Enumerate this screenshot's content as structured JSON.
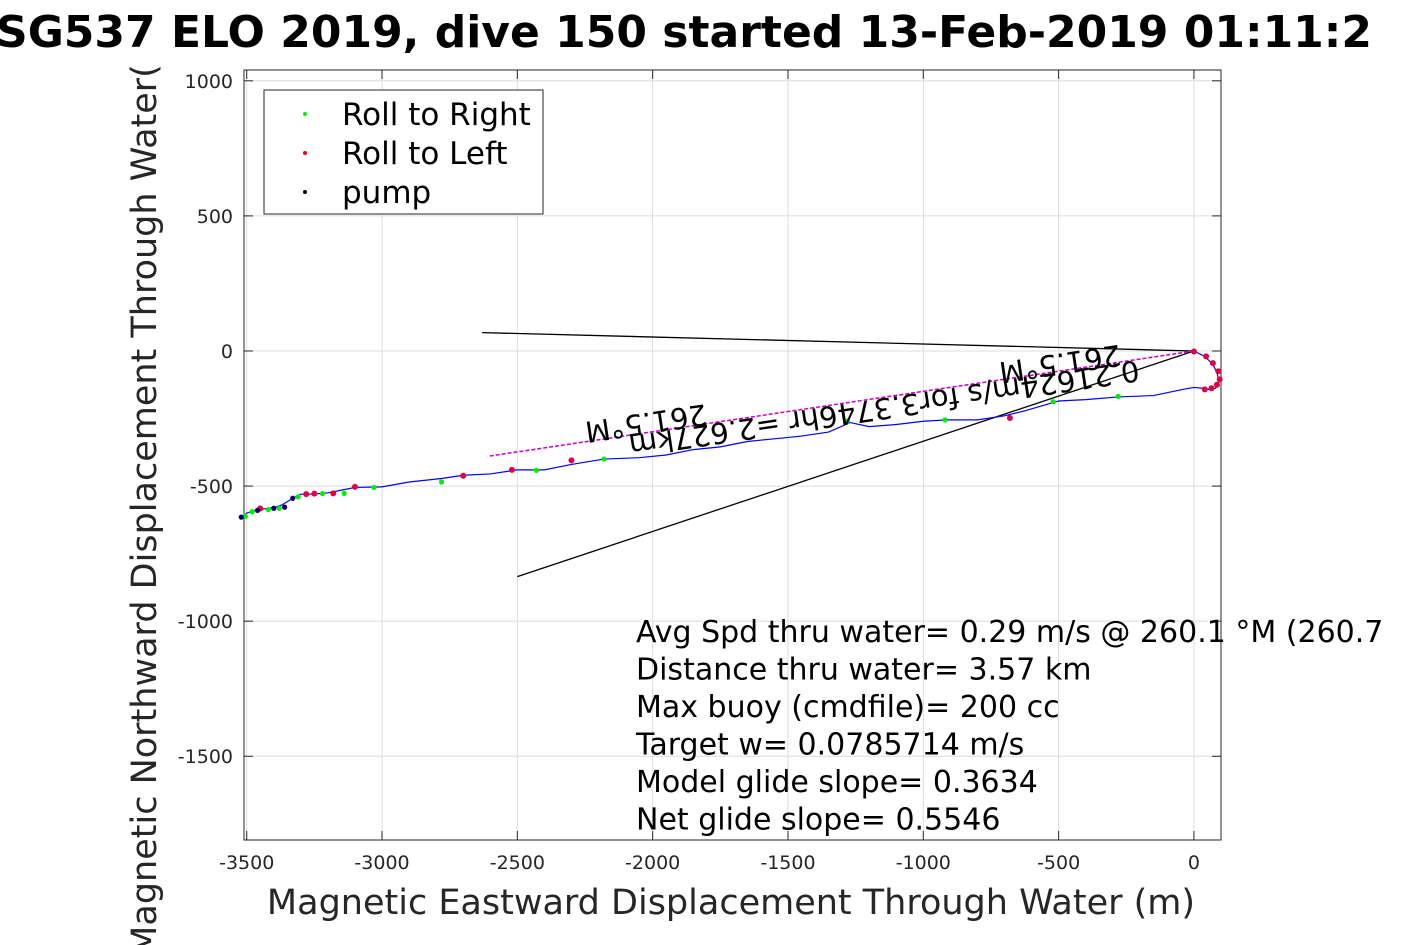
{
  "chart_data": {
    "type": "line",
    "title": "SG537 ELO 2019, dive 150 started 13-Feb-2019 01:11:2",
    "xlabel": "Magnetic Eastward Displacement Through Water (m)",
    "ylabel": "Magnetic Northward Displacement Through Water(",
    "xlim": [
      -3510,
      100
    ],
    "ylim": [
      -1810,
      1040
    ],
    "xticks": [
      -3500,
      -3000,
      -2500,
      -2000,
      -1500,
      -1000,
      -500,
      0
    ],
    "yticks": [
      1000,
      500,
      0,
      -500,
      -1000,
      -1500
    ],
    "grid": true,
    "legend_position": "top-left",
    "legend": [
      {
        "label": "Roll to Right",
        "color": "#00ee00"
      },
      {
        "label": "Roll to Left",
        "color": "#ee0000"
      },
      {
        "label": "pump",
        "color": "#000000"
      }
    ],
    "track": {
      "name": "track",
      "color": "#0000ff",
      "x": [
        0,
        40,
        70,
        85,
        92,
        90,
        75,
        55,
        30,
        0,
        -30,
        -150,
        -280,
        -400,
        -500,
        -620,
        -700,
        -800,
        -910,
        -1000,
        -1100,
        -1200,
        -1270,
        -1350,
        -1450,
        -1550,
        -1650,
        -1750,
        -1850,
        -1950,
        -2050,
        -2180,
        -2300,
        -2400,
        -2500,
        -2600,
        -2700,
        -2780,
        -2900,
        -3000,
        -3100,
        -3150,
        -3200,
        -3260,
        -3300,
        -3330,
        -3370,
        -3400,
        -3440,
        -3470,
        -3500,
        -3510
      ],
      "y": [
        0,
        -20,
        -50,
        -80,
        -110,
        -130,
        -140,
        -142,
        -138,
        -135,
        -140,
        -165,
        -170,
        -180,
        -185,
        -220,
        -240,
        -255,
        -255,
        -260,
        -272,
        -280,
        -265,
        -300,
        -315,
        -325,
        -335,
        -355,
        -365,
        -385,
        -395,
        -400,
        -420,
        -440,
        -440,
        -455,
        -460,
        -472,
        -485,
        -503,
        -505,
        -515,
        -525,
        -530,
        -530,
        -545,
        -570,
        -580,
        -585,
        -590,
        -600,
        -615
      ]
    },
    "markers": {
      "roll_right": {
        "x": [
          -3505,
          -3480,
          -3420,
          -3380,
          -3310,
          -3220,
          -3140,
          -3030,
          -2780,
          -2430,
          -2180,
          -1280,
          -920,
          -520,
          -280
        ],
        "y": [
          -612,
          -595,
          -587,
          -582,
          -540,
          -528,
          -527,
          -505,
          -485,
          -442,
          -400,
          -260,
          -255,
          -188,
          -168
        ]
      },
      "roll_left": {
        "x": [
          -3450,
          -3280,
          -3250,
          -3180,
          -3100,
          -2700,
          -2520,
          -2300,
          -680,
          0,
          45,
          70,
          90,
          95,
          85,
          65,
          40
        ],
        "y": [
          -583,
          -530,
          -528,
          -527,
          -503,
          -462,
          -440,
          -405,
          -248,
          -2,
          -20,
          -45,
          -75,
          -105,
          -125,
          -138,
          -142
        ]
      },
      "pump": {
        "x": [
          -3520,
          -3460,
          -3400,
          -3360,
          -3330
        ],
        "y": [
          -615,
          -590,
          -582,
          -578,
          -545
        ]
      }
    },
    "lines": [
      {
        "name": "heading-line",
        "color": "#000000",
        "x": [
          0,
          -2630
        ],
        "y": [
          0,
          68
        ]
      },
      {
        "name": "wedge-line",
        "color": "#000000",
        "x": [
          0,
          -2500
        ],
        "y": [
          0,
          -835
        ]
      },
      {
        "name": "average-vector",
        "color": "#cc00cc",
        "x": [
          0,
          -2610
        ],
        "y": [
          0,
          -390
        ]
      }
    ],
    "rotated_labels": [
      {
        "name": "vector-speed-label",
        "text": "0.21624m/s for3.3746hr =2.627km",
        "x": -1150,
        "y": -175,
        "angle": 171.5
      },
      {
        "name": "heading-label-right",
        "text": "261.5°M",
        "x": -500,
        "y": -10,
        "angle": 171.5
      },
      {
        "name": "heading-label-left",
        "text": "261.5°M",
        "x": -2030,
        "y": -230,
        "angle": 171.5
      }
    ],
    "annotations": [
      "Avg Spd thru water=  0.29 m/s @ 260.1 °M (260.7",
      "Distance thru water=  3.57 km",
      "Max buoy (cmdfile)= 200 cc",
      "Target w= 0.0785714 m/s",
      "Model glide slope= 0.3634",
      "Net glide slope= 0.5546"
    ]
  }
}
